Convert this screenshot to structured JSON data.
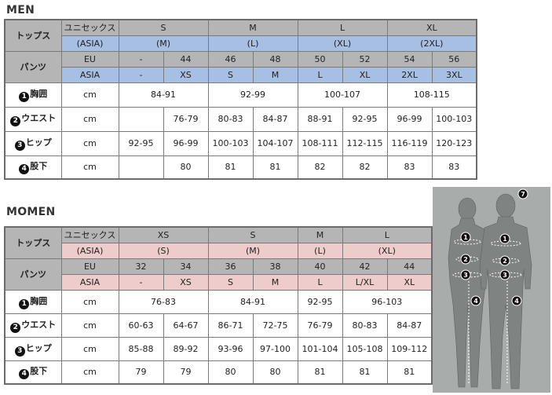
{
  "men": {
    "title": "MEN",
    "tops_label": "トップス",
    "pants_label": "パンツ",
    "unisex_label": "ユニセックス",
    "asia_label": "(ASIA)",
    "eu_label": "EU",
    "asia2_label": "ASIA",
    "top_sizes": [
      {
        "size": "S",
        "asia": "(M)"
      },
      {
        "size": "M",
        "asia": "(L)"
      },
      {
        "size": "L",
        "asia": "(XL)"
      },
      {
        "size": "XL",
        "asia": "(2XL)"
      }
    ],
    "eu": [
      "-",
      "44",
      "46",
      "48",
      "50",
      "52",
      "54",
      "56"
    ],
    "asia": [
      "-",
      "XS",
      "S",
      "M",
      "L",
      "XL",
      "2XL",
      "3XL"
    ],
    "rows": [
      {
        "num": "1",
        "label": "胸囲",
        "unit": "cm"
      },
      {
        "num": "2",
        "label": "ウエスト",
        "unit": "cm"
      },
      {
        "num": "3",
        "label": "ヒップ",
        "unit": "cm"
      },
      {
        "num": "4",
        "label": "股下",
        "unit": "cm"
      }
    ],
    "chest": [
      "84-91",
      "92-99",
      "100-107",
      "108-115"
    ],
    "waist": [
      "",
      "76-79",
      "80-83",
      "84-87",
      "88-91",
      "92-95",
      "96-99",
      "100-103"
    ],
    "hip": [
      "92-95",
      "96-99",
      "100-103",
      "104-107",
      "108-111",
      "112-115",
      "116-119",
      "120-123"
    ],
    "inseam": [
      "",
      "80",
      "81",
      "81",
      "82",
      "82",
      "83",
      "83"
    ]
  },
  "women": {
    "title": "MOMEN",
    "tops_label": "トップス",
    "pants_label": "パンツ",
    "unisex_label": "ユニセックス",
    "asia_label": "(ASIA)",
    "eu_label": "EU",
    "asia2_label": "ASIA",
    "top_sizes": [
      {
        "size": "XS",
        "asia": "(S)"
      },
      {
        "size": "S",
        "asia": "(M)"
      },
      {
        "size": "M",
        "asia": "(L)"
      },
      {
        "size": "L",
        "asia": "(XL)"
      }
    ],
    "eu": [
      "32",
      "34",
      "36",
      "38",
      "40",
      "42",
      "44"
    ],
    "asia": [
      "-",
      "XS",
      "S",
      "M",
      "L",
      "L/XL",
      "XL"
    ],
    "rows": [
      {
        "num": "1",
        "label": "胸囲",
        "unit": "cm"
      },
      {
        "num": "2",
        "label": "ウエスト",
        "unit": "cm"
      },
      {
        "num": "3",
        "label": "ヒップ",
        "unit": "cm"
      },
      {
        "num": "4",
        "label": "股下",
        "unit": "cm"
      }
    ],
    "chest": [
      "76-83",
      "84-91",
      "92-95",
      "96-103"
    ],
    "waist": [
      "60-63",
      "64-67",
      "86-71",
      "72-75",
      "76-79",
      "80-83",
      "84-87"
    ],
    "hip": [
      "85-88",
      "89-92",
      "93-96",
      "97-100",
      "101-104",
      "105-108",
      "109-112"
    ],
    "inseam": [
      "79",
      "79",
      "80",
      "80",
      "81",
      "81",
      "81"
    ]
  },
  "figure_markers": [
    "1",
    "2",
    "3",
    "4",
    "7"
  ],
  "colors": {
    "header_gray": "#b5b5b5",
    "men_blue": "#a6bfe2",
    "women_pink": "#efcccc",
    "figure_bg": "#a8acab"
  }
}
